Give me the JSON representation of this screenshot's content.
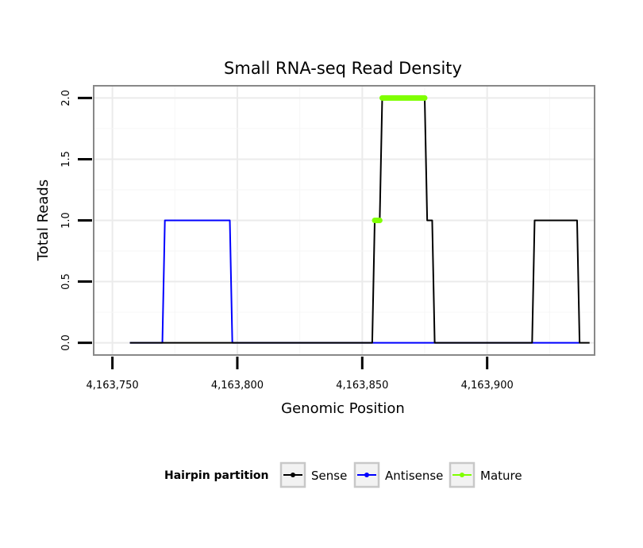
{
  "chart_data": {
    "type": "line",
    "title": "Small RNA-seq Read Density",
    "xlabel": "Genomic Position",
    "ylabel": "Total Reads",
    "xlim": [
      4163742.5,
      4163943
    ],
    "ylim": [
      -0.1,
      2.1
    ],
    "x_ticks": [
      4163750,
      4163800,
      4163850,
      4163900
    ],
    "x_tick_labels": [
      "4,163,750",
      "4,163,800",
      "4,163,850",
      "4,163,900"
    ],
    "y_ticks": [
      0,
      0.5,
      1,
      1.5,
      2
    ],
    "y_tick_labels": [
      "0.0",
      "0.5",
      "1.0",
      "1.5",
      "2.0"
    ],
    "grid": true,
    "legend": {
      "title": "Hairpin partition",
      "position": "bottom",
      "entries": [
        {
          "name": "Sense",
          "color": "#000000"
        },
        {
          "name": "Antisense",
          "color": "#0000ff"
        },
        {
          "name": "Mature",
          "color": "#7fff00"
        }
      ]
    },
    "series": [
      {
        "name": "Antisense",
        "color": "#0000ff",
        "style": "line",
        "x": [
          4163757,
          4163770,
          4163771,
          4163797,
          4163798,
          4163937
        ],
        "y": [
          0,
          0,
          1,
          1,
          0,
          0
        ]
      },
      {
        "name": "Sense",
        "color": "#000000",
        "style": "line",
        "x": [
          4163757,
          4163854,
          4163855,
          4163857,
          4163858,
          4163875,
          4163876,
          4163878,
          4163879,
          4163918,
          4163919,
          4163936,
          4163937,
          4163941
        ],
        "y": [
          0,
          0,
          1,
          1,
          2,
          2,
          1,
          1,
          0,
          0,
          1,
          1,
          0,
          0
        ]
      },
      {
        "name": "Mature",
        "color": "#7fff00",
        "style": "thick-segments",
        "segments": [
          {
            "x": [
              4163855,
              4163857
            ],
            "y": 1
          },
          {
            "x": [
              4163858,
              4163875
            ],
            "y": 2
          }
        ]
      }
    ]
  }
}
